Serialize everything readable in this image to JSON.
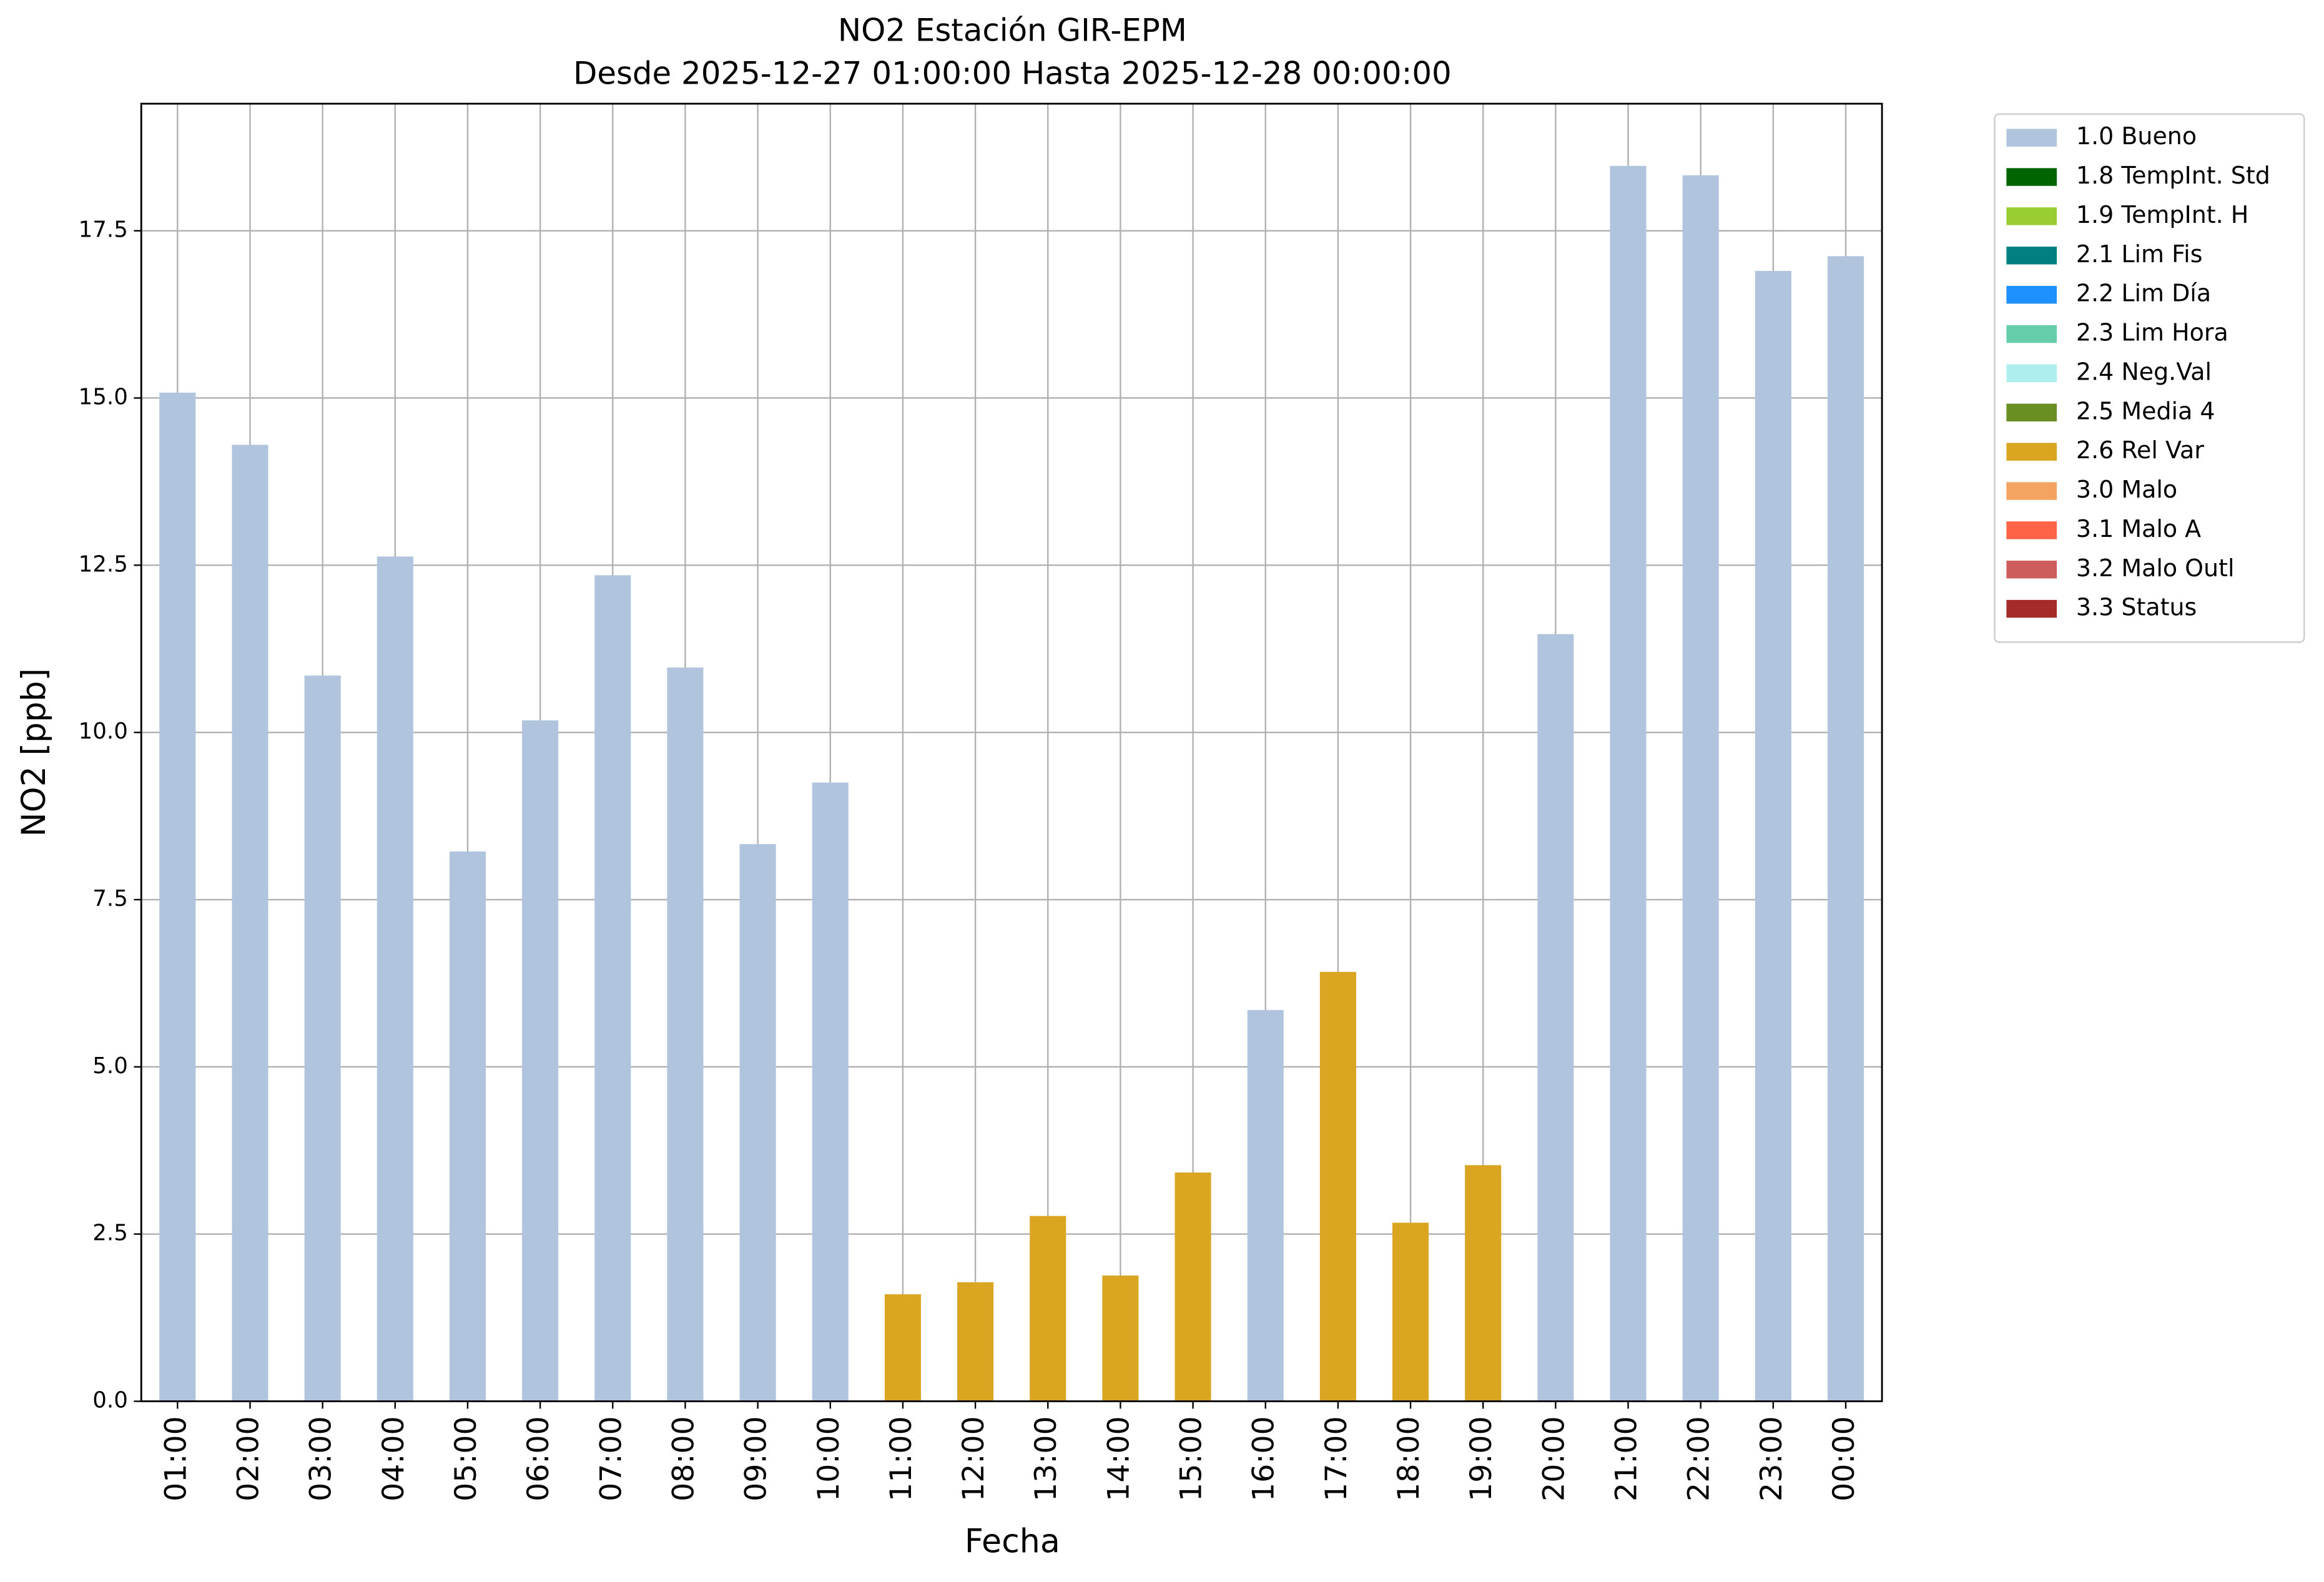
{
  "chart_data": {
    "type": "bar",
    "stacked": true,
    "title": "NO2 Estación GIR-EPM",
    "subtitle": "Desde 2025-12-27 01:00:00 Hasta 2025-12-28 00:00:00",
    "x_label": "Fecha",
    "y_label": "NO2 [ppb]",
    "categories": [
      "01:00",
      "02:00",
      "03:00",
      "04:00",
      "05:00",
      "06:00",
      "07:00",
      "08:00",
      "09:00",
      "10:00",
      "11:00",
      "12:00",
      "13:00",
      "14:00",
      "15:00",
      "16:00",
      "17:00",
      "18:00",
      "19:00",
      "20:00",
      "21:00",
      "22:00",
      "23:00",
      "00:00"
    ],
    "series": [
      {
        "name": "1.0 Bueno",
        "color": "#b0c4de",
        "values": [
          15.08,
          14.3,
          10.85,
          12.63,
          8.22,
          10.18,
          12.35,
          10.97,
          8.33,
          9.25,
          null,
          null,
          null,
          null,
          null,
          5.85,
          null,
          null,
          null,
          11.47,
          18.47,
          18.33,
          16.9,
          17.12
        ]
      },
      {
        "name": "1.8 TempInt. Std",
        "color": "#006400",
        "values": [
          null,
          null,
          null,
          null,
          null,
          null,
          null,
          null,
          null,
          null,
          null,
          null,
          null,
          null,
          null,
          null,
          null,
          null,
          null,
          null,
          null,
          null,
          null,
          null
        ]
      },
      {
        "name": "1.9 TempInt. H",
        "color": "#9acd32",
        "values": [
          null,
          null,
          null,
          null,
          null,
          null,
          null,
          null,
          null,
          null,
          null,
          null,
          null,
          null,
          null,
          null,
          null,
          null,
          null,
          null,
          null,
          null,
          null,
          null
        ]
      },
      {
        "name": "2.1 Lim Fis",
        "color": "#008080",
        "values": [
          null,
          null,
          null,
          null,
          null,
          null,
          null,
          null,
          null,
          null,
          null,
          null,
          null,
          null,
          null,
          null,
          null,
          null,
          null,
          null,
          null,
          null,
          null,
          null
        ]
      },
      {
        "name": "2.2 Lim Día",
        "color": "#1e90ff",
        "values": [
          null,
          null,
          null,
          null,
          null,
          null,
          null,
          null,
          null,
          null,
          null,
          null,
          null,
          null,
          null,
          null,
          null,
          null,
          null,
          null,
          null,
          null,
          null,
          null
        ]
      },
      {
        "name": "2.3 Lim Hora",
        "color": "#66cdaa",
        "values": [
          null,
          null,
          null,
          null,
          null,
          null,
          null,
          null,
          null,
          null,
          null,
          null,
          null,
          null,
          null,
          null,
          null,
          null,
          null,
          null,
          null,
          null,
          null,
          null
        ]
      },
      {
        "name": "2.4 Neg.Val",
        "color": "#afeeee",
        "values": [
          null,
          null,
          null,
          null,
          null,
          null,
          null,
          null,
          null,
          null,
          null,
          null,
          null,
          null,
          null,
          null,
          null,
          null,
          null,
          null,
          null,
          null,
          null,
          null
        ]
      },
      {
        "name": "2.5 Media 4",
        "color": "#6b8e23",
        "values": [
          null,
          null,
          null,
          null,
          null,
          null,
          null,
          null,
          null,
          null,
          null,
          null,
          null,
          null,
          null,
          null,
          null,
          null,
          null,
          null,
          null,
          null,
          null,
          null
        ]
      },
      {
        "name": "2.6 Rel Var",
        "color": "#daa520",
        "values": [
          null,
          null,
          null,
          null,
          null,
          null,
          null,
          null,
          null,
          null,
          1.6,
          1.78,
          2.77,
          1.88,
          3.42,
          null,
          6.42,
          2.67,
          3.53,
          null,
          null,
          null,
          null,
          null
        ]
      },
      {
        "name": "3.0 Malo",
        "color": "#f4a460",
        "values": [
          null,
          null,
          null,
          null,
          null,
          null,
          null,
          null,
          null,
          null,
          null,
          null,
          null,
          null,
          null,
          null,
          null,
          null,
          null,
          null,
          null,
          null,
          null,
          null
        ]
      },
      {
        "name": "3.1 Malo A",
        "color": "#ff6347",
        "values": [
          null,
          null,
          null,
          null,
          null,
          null,
          null,
          null,
          null,
          null,
          null,
          null,
          null,
          null,
          null,
          null,
          null,
          null,
          null,
          null,
          null,
          null,
          null,
          null
        ]
      },
      {
        "name": "3.2 Malo Outl",
        "color": "#cd5c5c",
        "values": [
          null,
          null,
          null,
          null,
          null,
          null,
          null,
          null,
          null,
          null,
          null,
          null,
          null,
          null,
          null,
          null,
          null,
          null,
          null,
          null,
          null,
          null,
          null,
          null
        ]
      },
      {
        "name": "3.3 Status",
        "color": "#a52a2a",
        "values": [
          null,
          null,
          null,
          null,
          null,
          null,
          null,
          null,
          null,
          null,
          null,
          null,
          null,
          null,
          null,
          null,
          null,
          null,
          null,
          null,
          null,
          null,
          null,
          null
        ]
      }
    ],
    "ylim": [
      0,
      19.4
    ],
    "yticks": [
      {
        "value": 0,
        "label": "0.0"
      },
      {
        "value": 2.5,
        "label": "2.5"
      },
      {
        "value": 5,
        "label": "5.0"
      },
      {
        "value": 7.5,
        "label": "7.5"
      },
      {
        "value": 10,
        "label": "10.0"
      },
      {
        "value": 12.5,
        "label": "12.5"
      },
      {
        "value": 15,
        "label": "15.0"
      },
      {
        "value": 17.5,
        "label": "17.5"
      }
    ],
    "grid": true,
    "legend": "outside-upper-right"
  }
}
